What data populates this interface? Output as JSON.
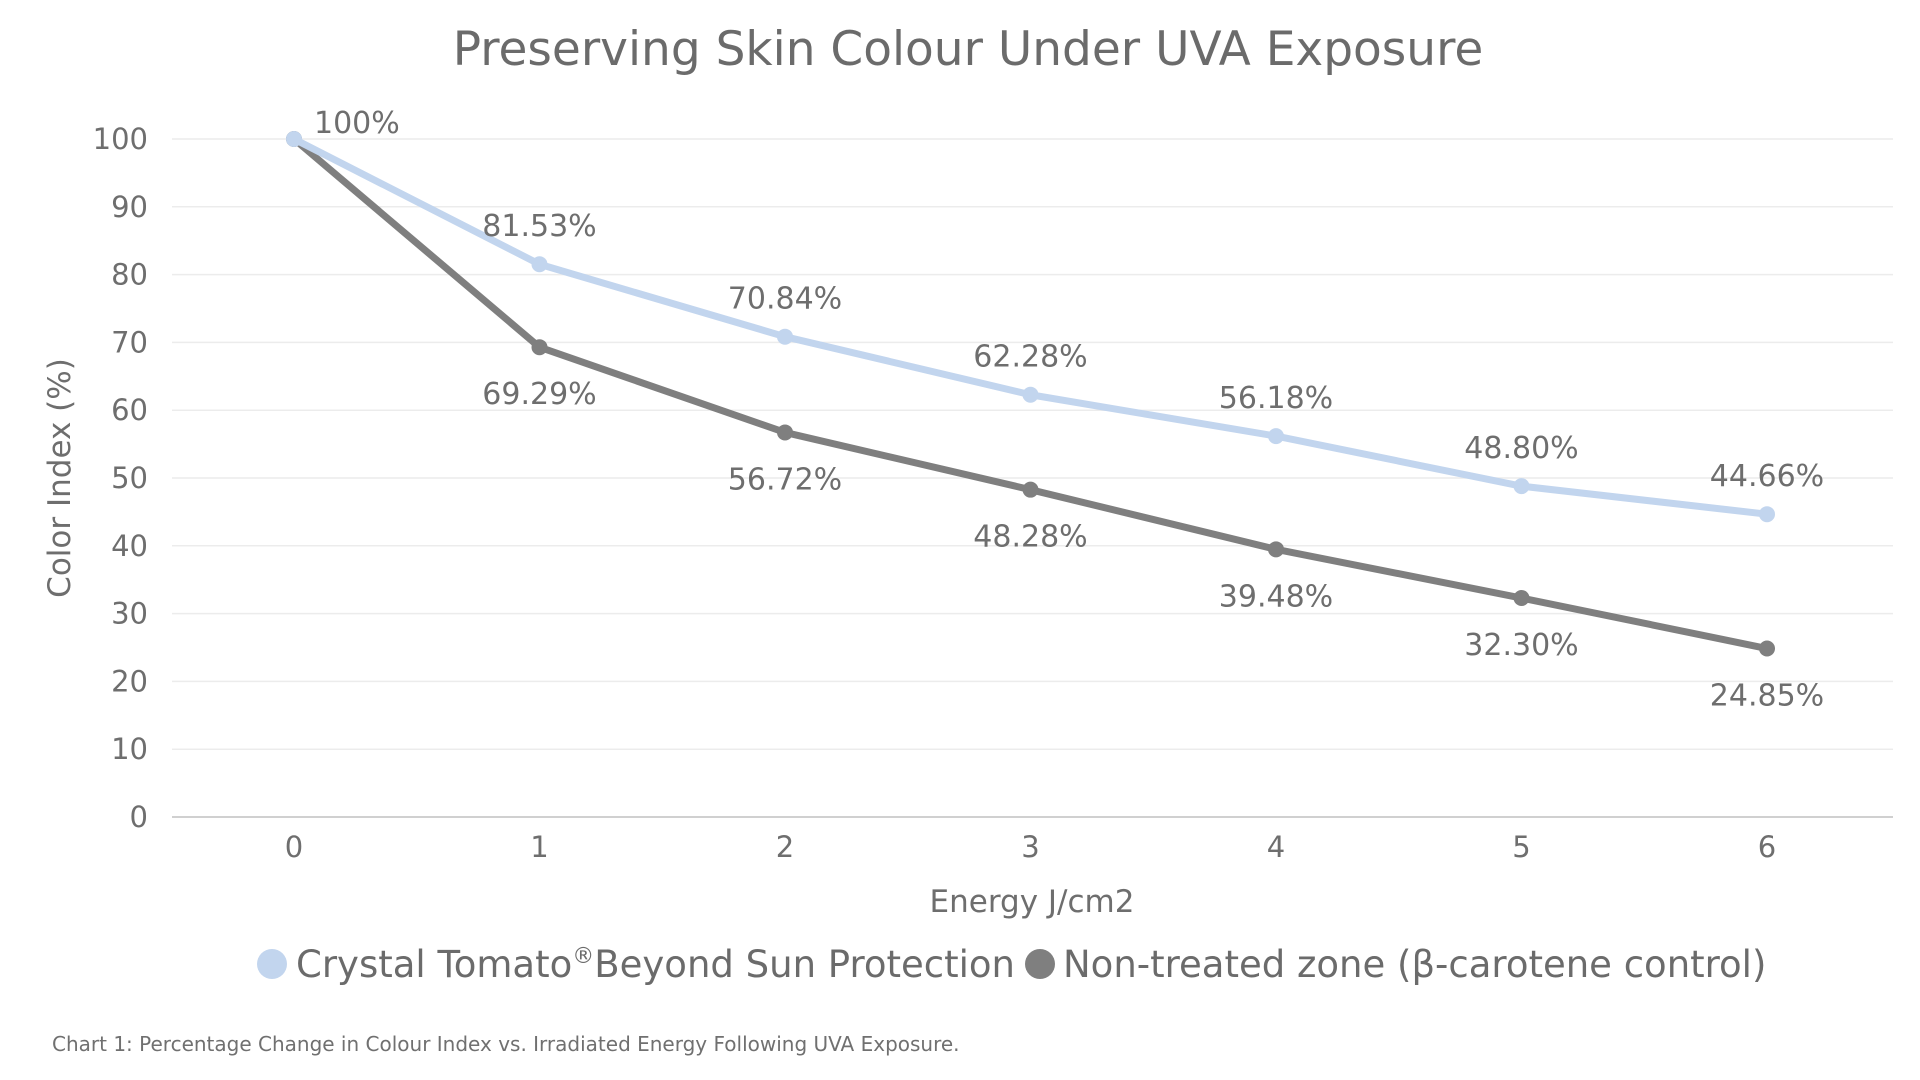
{
  "chart_data": {
    "type": "line",
    "title": "Preserving Skin Colour Under UVA Exposure",
    "xlabel": "Energy J/cm2",
    "ylabel": "Color Index (%)",
    "x": [
      "0",
      "1",
      "2",
      "3",
      "4",
      "5",
      "6"
    ],
    "ylim": [
      0,
      100
    ],
    "yticks": [
      "0",
      "10",
      "20",
      "30",
      "40",
      "50",
      "60",
      "70",
      "80",
      "90",
      "100"
    ],
    "grid": true,
    "legend_position": "bottom",
    "series": [
      {
        "name": "Crystal Tomato® Beyond Sun Protection",
        "name_main": "Crystal Tomato",
        "name_sup": "®",
        "name_rest": "Beyond Sun Protection",
        "color": "#c2d5ee",
        "values": [
          100,
          81.53,
          70.84,
          62.28,
          56.18,
          48.8,
          44.66
        ],
        "labels": [
          "100%",
          "81.53%",
          "70.84%",
          "62.28%",
          "56.18%",
          "48.80%",
          "44.66%"
        ],
        "label_position": "above"
      },
      {
        "name": "Non-treated zone (β-carotene control)",
        "color": "#7f7f7f",
        "values": [
          100,
          69.29,
          56.72,
          48.28,
          39.48,
          32.3,
          24.85
        ],
        "labels": [
          "",
          "69.29%",
          "56.72%",
          "48.28%",
          "39.48%",
          "32.30%",
          "24.85%"
        ],
        "label_position": "below"
      }
    ],
    "caption": "Chart 1: Percentage Change in Colour Index vs. Irradiated Energy Following UVA Exposure."
  }
}
